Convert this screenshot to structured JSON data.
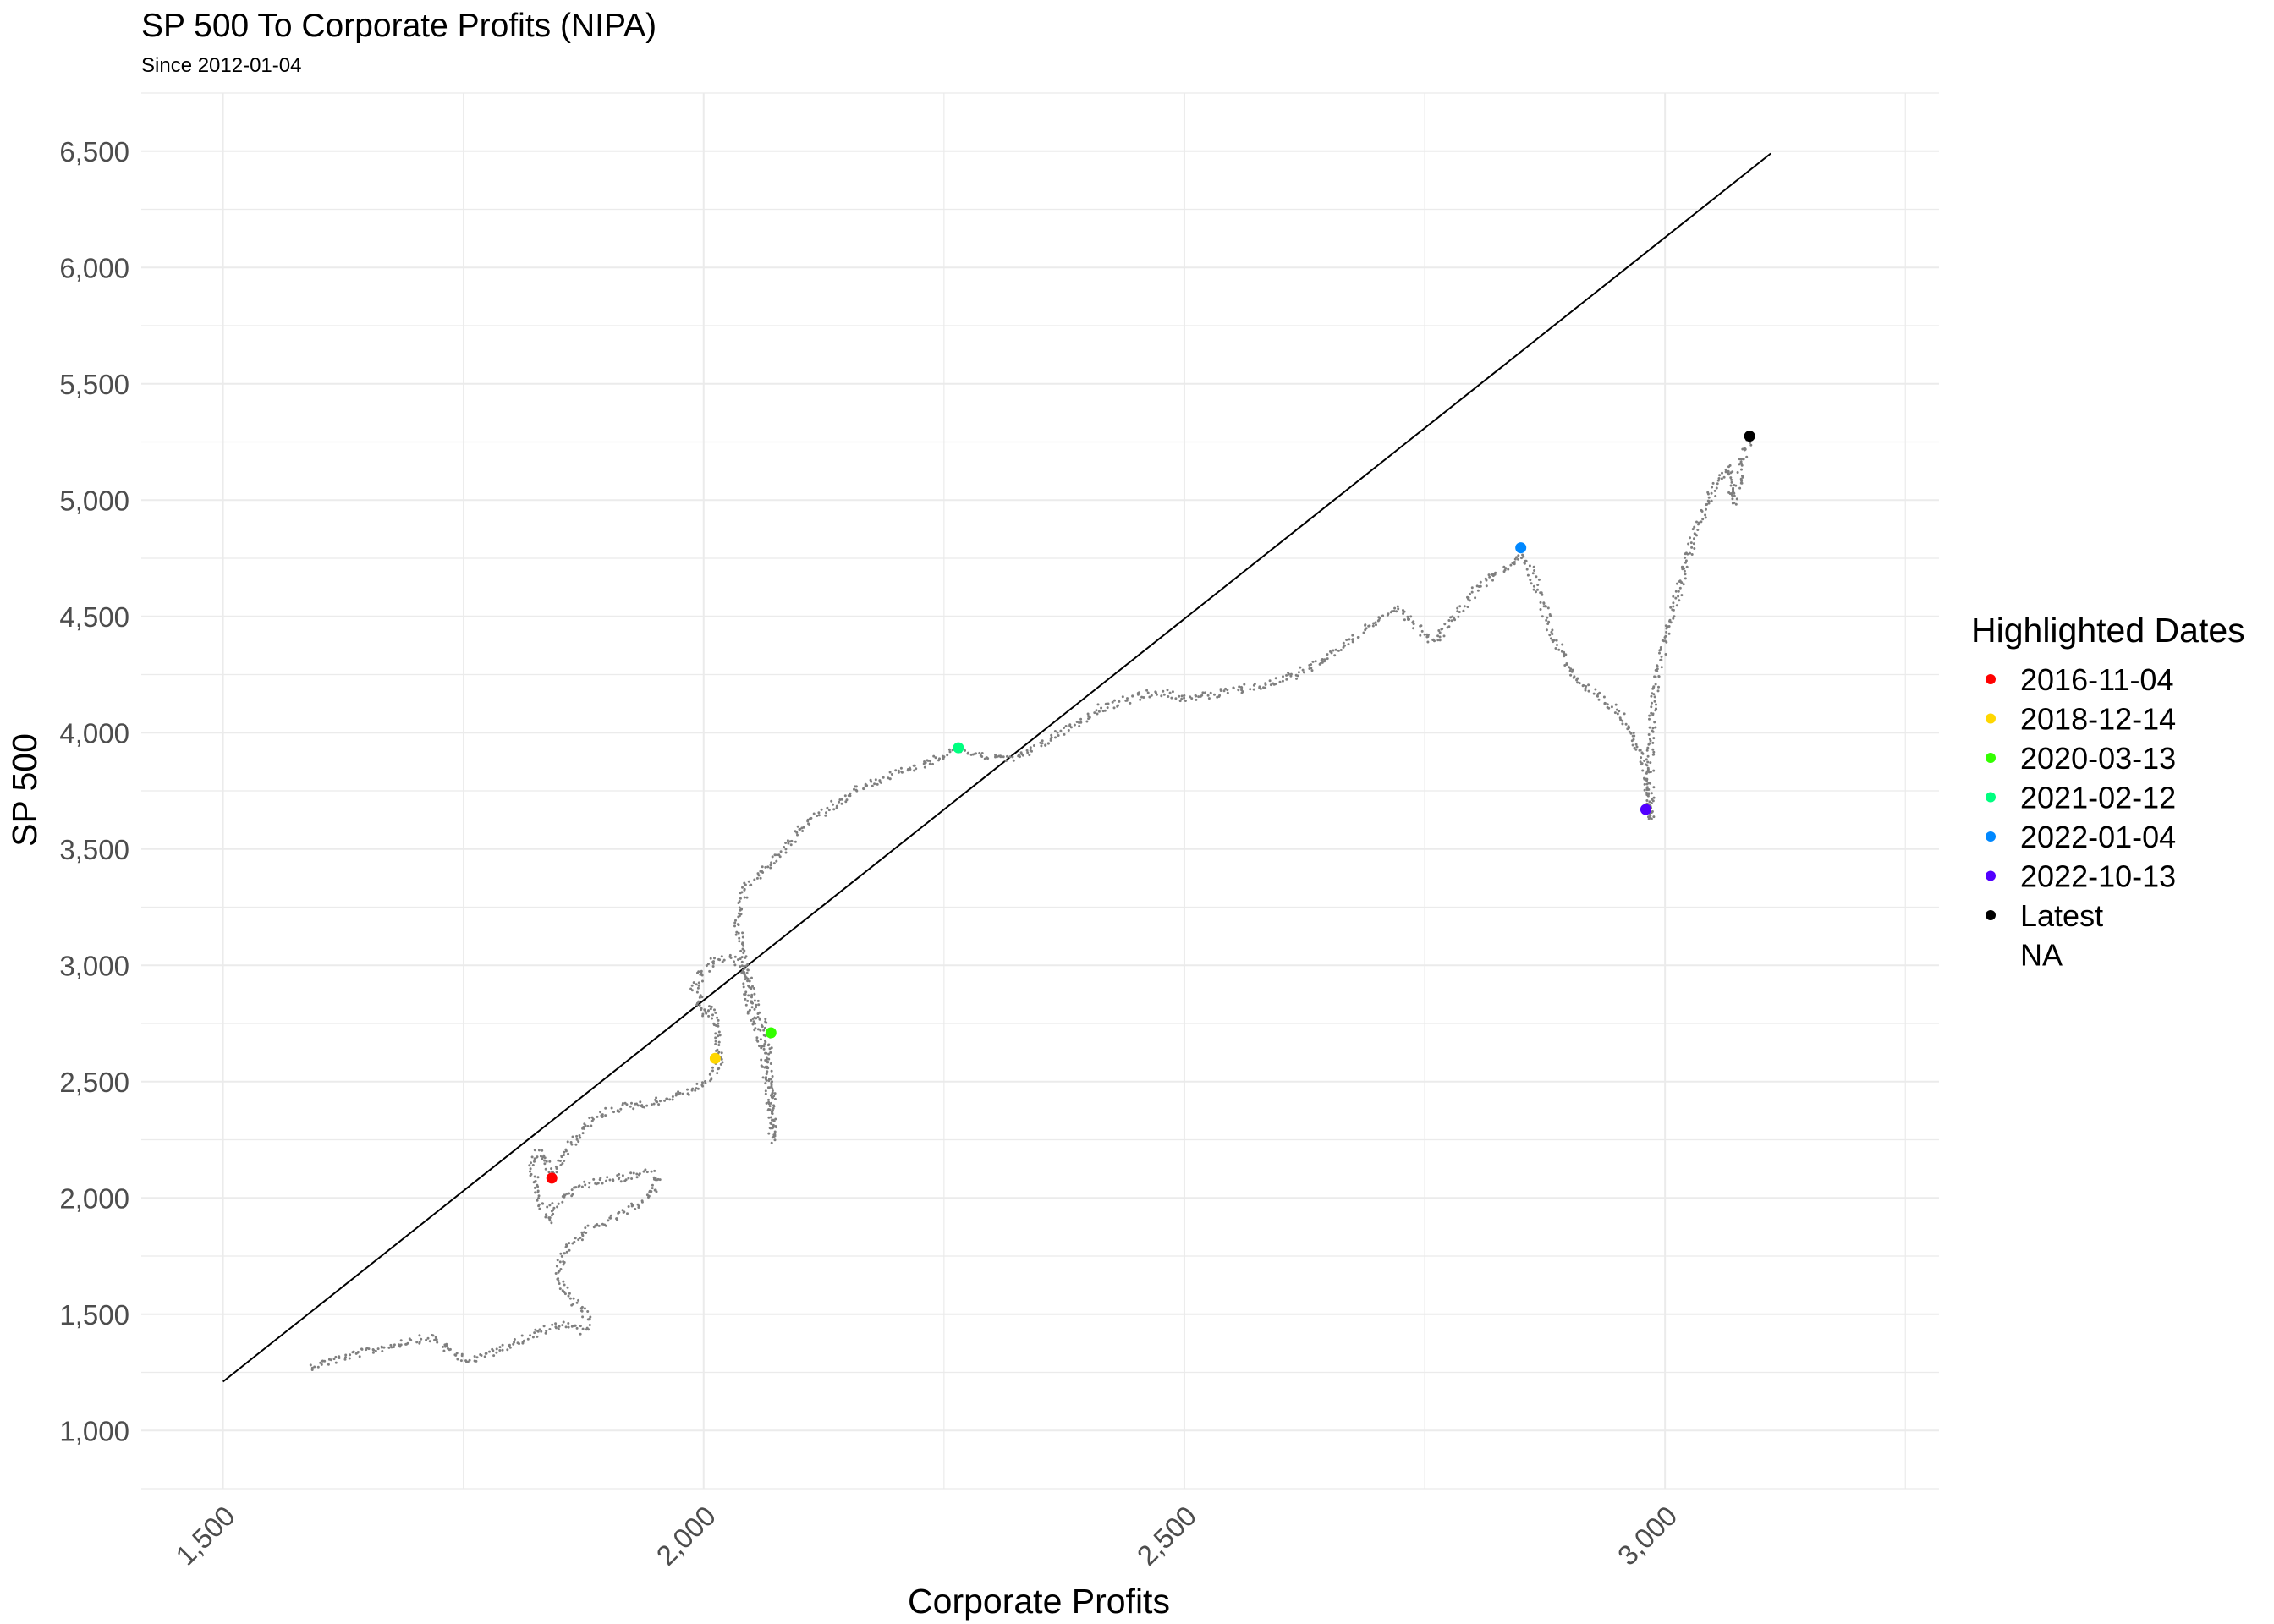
{
  "chart_data": {
    "type": "scatter",
    "title": "SP 500 To Corporate Profits (NIPA)",
    "subtitle": "Since 2012-01-04",
    "xlabel": "Corporate Profits",
    "ylabel": "SP 500",
    "xlim": [
      1415,
      3285
    ],
    "ylim": [
      750,
      6750
    ],
    "x_ticks": [
      {
        "value": 1500,
        "label": "1,500"
      },
      {
        "value": 2000,
        "label": "2,000"
      },
      {
        "value": 2500,
        "label": "2,500"
      },
      {
        "value": 3000,
        "label": "3,000"
      }
    ],
    "y_ticks": [
      {
        "value": 1000,
        "label": "1,000"
      },
      {
        "value": 1500,
        "label": "1,500"
      },
      {
        "value": 2000,
        "label": "2,000"
      },
      {
        "value": 2500,
        "label": "2,500"
      },
      {
        "value": 3000,
        "label": "3,000"
      },
      {
        "value": 3500,
        "label": "3,500"
      },
      {
        "value": 4000,
        "label": "4,000"
      },
      {
        "value": 4500,
        "label": "4,500"
      },
      {
        "value": 5000,
        "label": "5,000"
      },
      {
        "value": 5500,
        "label": "5,500"
      },
      {
        "value": 6000,
        "label": "6,000"
      },
      {
        "value": 6500,
        "label": "6,500"
      }
    ],
    "grid": true,
    "grid_color": "#ebebeb",
    "point_color": "#7f7f7f",
    "trend_line": {
      "x": [
        1500,
        3110
      ],
      "y": [
        1210,
        6490
      ],
      "color": "#000000"
    },
    "path": [
      [
        1590,
        1275
      ],
      [
        1620,
        1310
      ],
      [
        1660,
        1350
      ],
      [
        1700,
        1390
      ],
      [
        1720,
        1400
      ],
      [
        1740,
        1330
      ],
      [
        1760,
        1300
      ],
      [
        1780,
        1340
      ],
      [
        1810,
        1390
      ],
      [
        1840,
        1440
      ],
      [
        1860,
        1460
      ],
      [
        1875,
        1430
      ],
      [
        1880,
        1480
      ],
      [
        1872,
        1530
      ],
      [
        1858,
        1580
      ],
      [
        1850,
        1660
      ],
      [
        1852,
        1740
      ],
      [
        1860,
        1800
      ],
      [
        1875,
        1850
      ],
      [
        1895,
        1890
      ],
      [
        1915,
        1930
      ],
      [
        1935,
        1980
      ],
      [
        1948,
        2030
      ],
      [
        1952,
        2090
      ],
      [
        1942,
        2110
      ],
      [
        1920,
        2090
      ],
      [
        1895,
        2080
      ],
      [
        1870,
        2050
      ],
      [
        1850,
        1990
      ],
      [
        1842,
        1950
      ],
      [
        1838,
        1900
      ],
      [
        1830,
        1990
      ],
      [
        1825,
        2070
      ],
      [
        1822,
        2150
      ],
      [
        1828,
        2200
      ],
      [
        1838,
        2140
      ],
      [
        1842,
        2090
      ],
      [
        1860,
        2220
      ],
      [
        1880,
        2320
      ],
      [
        1910,
        2390
      ],
      [
        1950,
        2410
      ],
      [
        1985,
        2460
      ],
      [
        2000,
        2490
      ],
      [
        2010,
        2530
      ],
      [
        2018,
        2600
      ],
      [
        2015,
        2700
      ],
      [
        2008,
        2820
      ],
      [
        2000,
        2780
      ],
      [
        1995,
        2850
      ],
      [
        1990,
        2900
      ],
      [
        1998,
        2960
      ],
      [
        2010,
        3020
      ],
      [
        2025,
        3030
      ],
      [
        2040,
        3000
      ],
      [
        2045,
        2900
      ],
      [
        2050,
        2800
      ],
      [
        2060,
        2650
      ],
      [
        2068,
        2450
      ],
      [
        2070,
        2300
      ],
      [
        2072,
        2250
      ],
      [
        2070,
        2500
      ],
      [
        2065,
        2710
      ],
      [
        2058,
        2800
      ],
      [
        2048,
        2900
      ],
      [
        2040,
        3060
      ],
      [
        2035,
        3200
      ],
      [
        2045,
        3350
      ],
      [
        2060,
        3400
      ],
      [
        2080,
        3480
      ],
      [
        2100,
        3580
      ],
      [
        2120,
        3650
      ],
      [
        2140,
        3700
      ],
      [
        2160,
        3760
      ],
      [
        2190,
        3810
      ],
      [
        2220,
        3850
      ],
      [
        2250,
        3900
      ],
      [
        2265,
        3935
      ],
      [
        2290,
        3900
      ],
      [
        2320,
        3880
      ],
      [
        2350,
        3950
      ],
      [
        2380,
        4020
      ],
      [
        2410,
        4100
      ],
      [
        2440,
        4140
      ],
      [
        2470,
        4180
      ],
      [
        2500,
        4150
      ],
      [
        2530,
        4160
      ],
      [
        2560,
        4190
      ],
      [
        2590,
        4210
      ],
      [
        2620,
        4260
      ],
      [
        2650,
        4330
      ],
      [
        2680,
        4420
      ],
      [
        2700,
        4490
      ],
      [
        2720,
        4530
      ],
      [
        2740,
        4460
      ],
      [
        2760,
        4390
      ],
      [
        2780,
        4500
      ],
      [
        2800,
        4600
      ],
      [
        2820,
        4680
      ],
      [
        2840,
        4720
      ],
      [
        2850,
        4790
      ],
      [
        2860,
        4700
      ],
      [
        2870,
        4590
      ],
      [
        2880,
        4450
      ],
      [
        2890,
        4360
      ],
      [
        2900,
        4280
      ],
      [
        2915,
        4200
      ],
      [
        2930,
        4150
      ],
      [
        2950,
        4100
      ],
      [
        2965,
        4000
      ],
      [
        2978,
        3880
      ],
      [
        2982,
        3700
      ],
      [
        2985,
        3620
      ],
      [
        2985,
        3900
      ],
      [
        2988,
        4150
      ],
      [
        2995,
        4300
      ],
      [
        3005,
        4480
      ],
      [
        3015,
        4620
      ],
      [
        3025,
        4780
      ],
      [
        3035,
        4900
      ],
      [
        3050,
        5040
      ],
      [
        3065,
        5140
      ],
      [
        3070,
        5040
      ],
      [
        3072,
        4990
      ],
      [
        3082,
        5200
      ],
      [
        3090,
        5280
      ]
    ],
    "highlights": [
      {
        "date": "2016-11-04",
        "x": 1842,
        "y": 2085,
        "color": "#ff0000"
      },
      {
        "date": "2018-12-14",
        "x": 2012,
        "y": 2600,
        "color": "#ffd700"
      },
      {
        "date": "2020-03-13",
        "x": 2070,
        "y": 2710,
        "color": "#33ff00"
      },
      {
        "date": "2021-02-12",
        "x": 2265,
        "y": 3935,
        "color": "#00ff80"
      },
      {
        "date": "2022-01-04",
        "x": 2850,
        "y": 4795,
        "color": "#0088ff"
      },
      {
        "date": "2022-10-13",
        "x": 2980,
        "y": 3670,
        "color": "#5200ff"
      },
      {
        "date": "Latest",
        "x": 3088,
        "y": 5275,
        "color": "#000000"
      }
    ],
    "legend": {
      "title": "Highlighted Dates",
      "position": "right",
      "entries": [
        {
          "label": "2016-11-04",
          "color": "#ff0000"
        },
        {
          "label": "2018-12-14",
          "color": "#ffd700"
        },
        {
          "label": "2020-03-13",
          "color": "#33ff00"
        },
        {
          "label": "2021-02-12",
          "color": "#00ff80"
        },
        {
          "label": "2022-01-04",
          "color": "#0088ff"
        },
        {
          "label": "2022-10-13",
          "color": "#5200ff"
        },
        {
          "label": "Latest",
          "color": "#000000"
        },
        {
          "label": "NA",
          "color": ""
        }
      ]
    }
  }
}
